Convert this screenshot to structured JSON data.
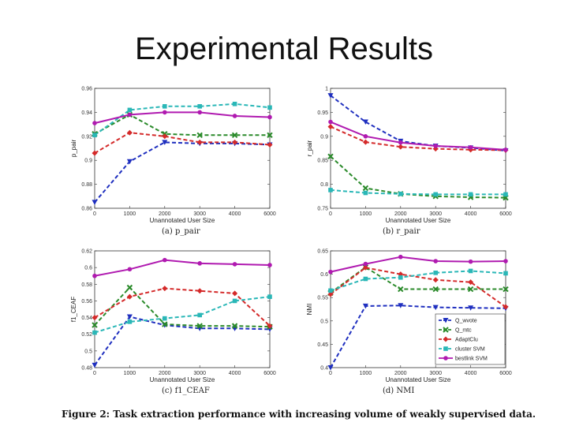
{
  "slide": {
    "title": "Experimental Results",
    "caption": "Figure 2: Task extraction performance with increasing volume of weakly supervised data."
  },
  "colors": {
    "wvote": "#1f2fbf",
    "mtc": "#2a8a2a",
    "adaptclu": "#d42a2a",
    "clusterSVM": "#2ab7b7",
    "bestlinkSVM": "#b01ab0"
  },
  "chart_data": [
    {
      "type": "line",
      "id": "a",
      "subtitle": "(a) p_pair",
      "ylabel": "p_pair",
      "xlabel": "Unannotated User Size",
      "x": [
        "0",
        "1000",
        "2000",
        "3000",
        "4000",
        "6000"
      ],
      "ylim": [
        0.86,
        0.96
      ],
      "yticks": [
        "0.86",
        "0.88",
        "0.9",
        "0.92",
        "0.94",
        "0.96"
      ],
      "series": [
        {
          "key": "wvote",
          "values": [
            0.865,
            0.899,
            0.915,
            0.914,
            0.914,
            0.913
          ]
        },
        {
          "key": "mtc",
          "values": [
            0.922,
            0.938,
            0.922,
            0.921,
            0.921,
            0.921
          ]
        },
        {
          "key": "adaptclu",
          "values": [
            0.906,
            0.923,
            0.92,
            0.915,
            0.915,
            0.913
          ]
        },
        {
          "key": "clusterSVM",
          "values": [
            0.921,
            0.942,
            0.945,
            0.945,
            0.947,
            0.944
          ]
        },
        {
          "key": "bestlinkSVM",
          "values": [
            0.931,
            0.938,
            0.94,
            0.94,
            0.937,
            0.936
          ]
        }
      ]
    },
    {
      "type": "line",
      "id": "b",
      "subtitle": "(b) r_pair",
      "ylabel": "r_pair",
      "xlabel": "Unannotated User Size",
      "x": [
        "0",
        "1000",
        "2000",
        "3000",
        "4000",
        "6000"
      ],
      "ylim": [
        0.75,
        1.0
      ],
      "yticks": [
        "0.75",
        "0.8",
        "0.85",
        "0.9",
        "0.95",
        "1"
      ],
      "series": [
        {
          "key": "wvote",
          "values": [
            0.985,
            0.93,
            0.89,
            0.88,
            0.876,
            0.87
          ]
        },
        {
          "key": "mtc",
          "values": [
            0.858,
            0.792,
            0.78,
            0.775,
            0.773,
            0.772
          ]
        },
        {
          "key": "adaptclu",
          "values": [
            0.92,
            0.888,
            0.878,
            0.874,
            0.872,
            0.871
          ]
        },
        {
          "key": "clusterSVM",
          "values": [
            0.788,
            0.782,
            0.78,
            0.779,
            0.779,
            0.779
          ]
        },
        {
          "key": "bestlinkSVM",
          "values": [
            0.93,
            0.9,
            0.887,
            0.88,
            0.877,
            0.872
          ]
        }
      ]
    },
    {
      "type": "line",
      "id": "c",
      "subtitle": "(c) f1_CEAF",
      "ylabel": "f1_CEAF",
      "xlabel": "Unannotated User Size",
      "x": [
        "0",
        "1000",
        "2000",
        "3000",
        "4000",
        "6000"
      ],
      "ylim": [
        0.48,
        0.62
      ],
      "yticks": [
        "0.48",
        "0.5",
        "0.52",
        "0.54",
        "0.56",
        "0.58",
        "0.6",
        "0.62"
      ],
      "series": [
        {
          "key": "wvote",
          "values": [
            0.483,
            0.541,
            0.531,
            0.527,
            0.527,
            0.526
          ]
        },
        {
          "key": "mtc",
          "values": [
            0.531,
            0.576,
            0.532,
            0.53,
            0.53,
            0.529
          ]
        },
        {
          "key": "adaptclu",
          "values": [
            0.54,
            0.565,
            0.575,
            0.572,
            0.569,
            0.53
          ]
        },
        {
          "key": "clusterSVM",
          "values": [
            0.522,
            0.535,
            0.539,
            0.543,
            0.56,
            0.565
          ]
        },
        {
          "key": "bestlinkSVM",
          "values": [
            0.59,
            0.598,
            0.609,
            0.605,
            0.604,
            0.603
          ]
        }
      ]
    },
    {
      "type": "line",
      "id": "d",
      "subtitle": "(d) NMI",
      "ylabel": "NMI",
      "xlabel": "Unannotated User Size",
      "x": [
        "0",
        "1000",
        "2000",
        "3000",
        "4000",
        "6000"
      ],
      "ylim": [
        0.4,
        0.65
      ],
      "yticks": [
        "0.4",
        "0.45",
        "0.5",
        "0.55",
        "0.6",
        "0.65"
      ],
      "series": [
        {
          "key": "wvote",
          "values": [
            0.4,
            0.532,
            0.533,
            0.529,
            0.528,
            0.527
          ]
        },
        {
          "key": "mtc",
          "values": [
            0.56,
            0.615,
            0.568,
            0.568,
            0.568,
            0.568
          ]
        },
        {
          "key": "adaptclu",
          "values": [
            0.557,
            0.614,
            0.6,
            0.588,
            0.583,
            0.53
          ]
        },
        {
          "key": "clusterSVM",
          "values": [
            0.565,
            0.59,
            0.593,
            0.603,
            0.607,
            0.602
          ]
        },
        {
          "key": "bestlinkSVM",
          "values": [
            0.605,
            0.622,
            0.637,
            0.628,
            0.627,
            0.628
          ]
        }
      ]
    }
  ],
  "legend": [
    {
      "key": "wvote",
      "label": "Q_wvote"
    },
    {
      "key": "mtc",
      "label": "Q_mtc"
    },
    {
      "key": "adaptclu",
      "label": "AdaptClu"
    },
    {
      "key": "clusterSVM",
      "label": "cluster SVM"
    },
    {
      "key": "bestlinkSVM",
      "label": "bestlink SVM"
    }
  ]
}
